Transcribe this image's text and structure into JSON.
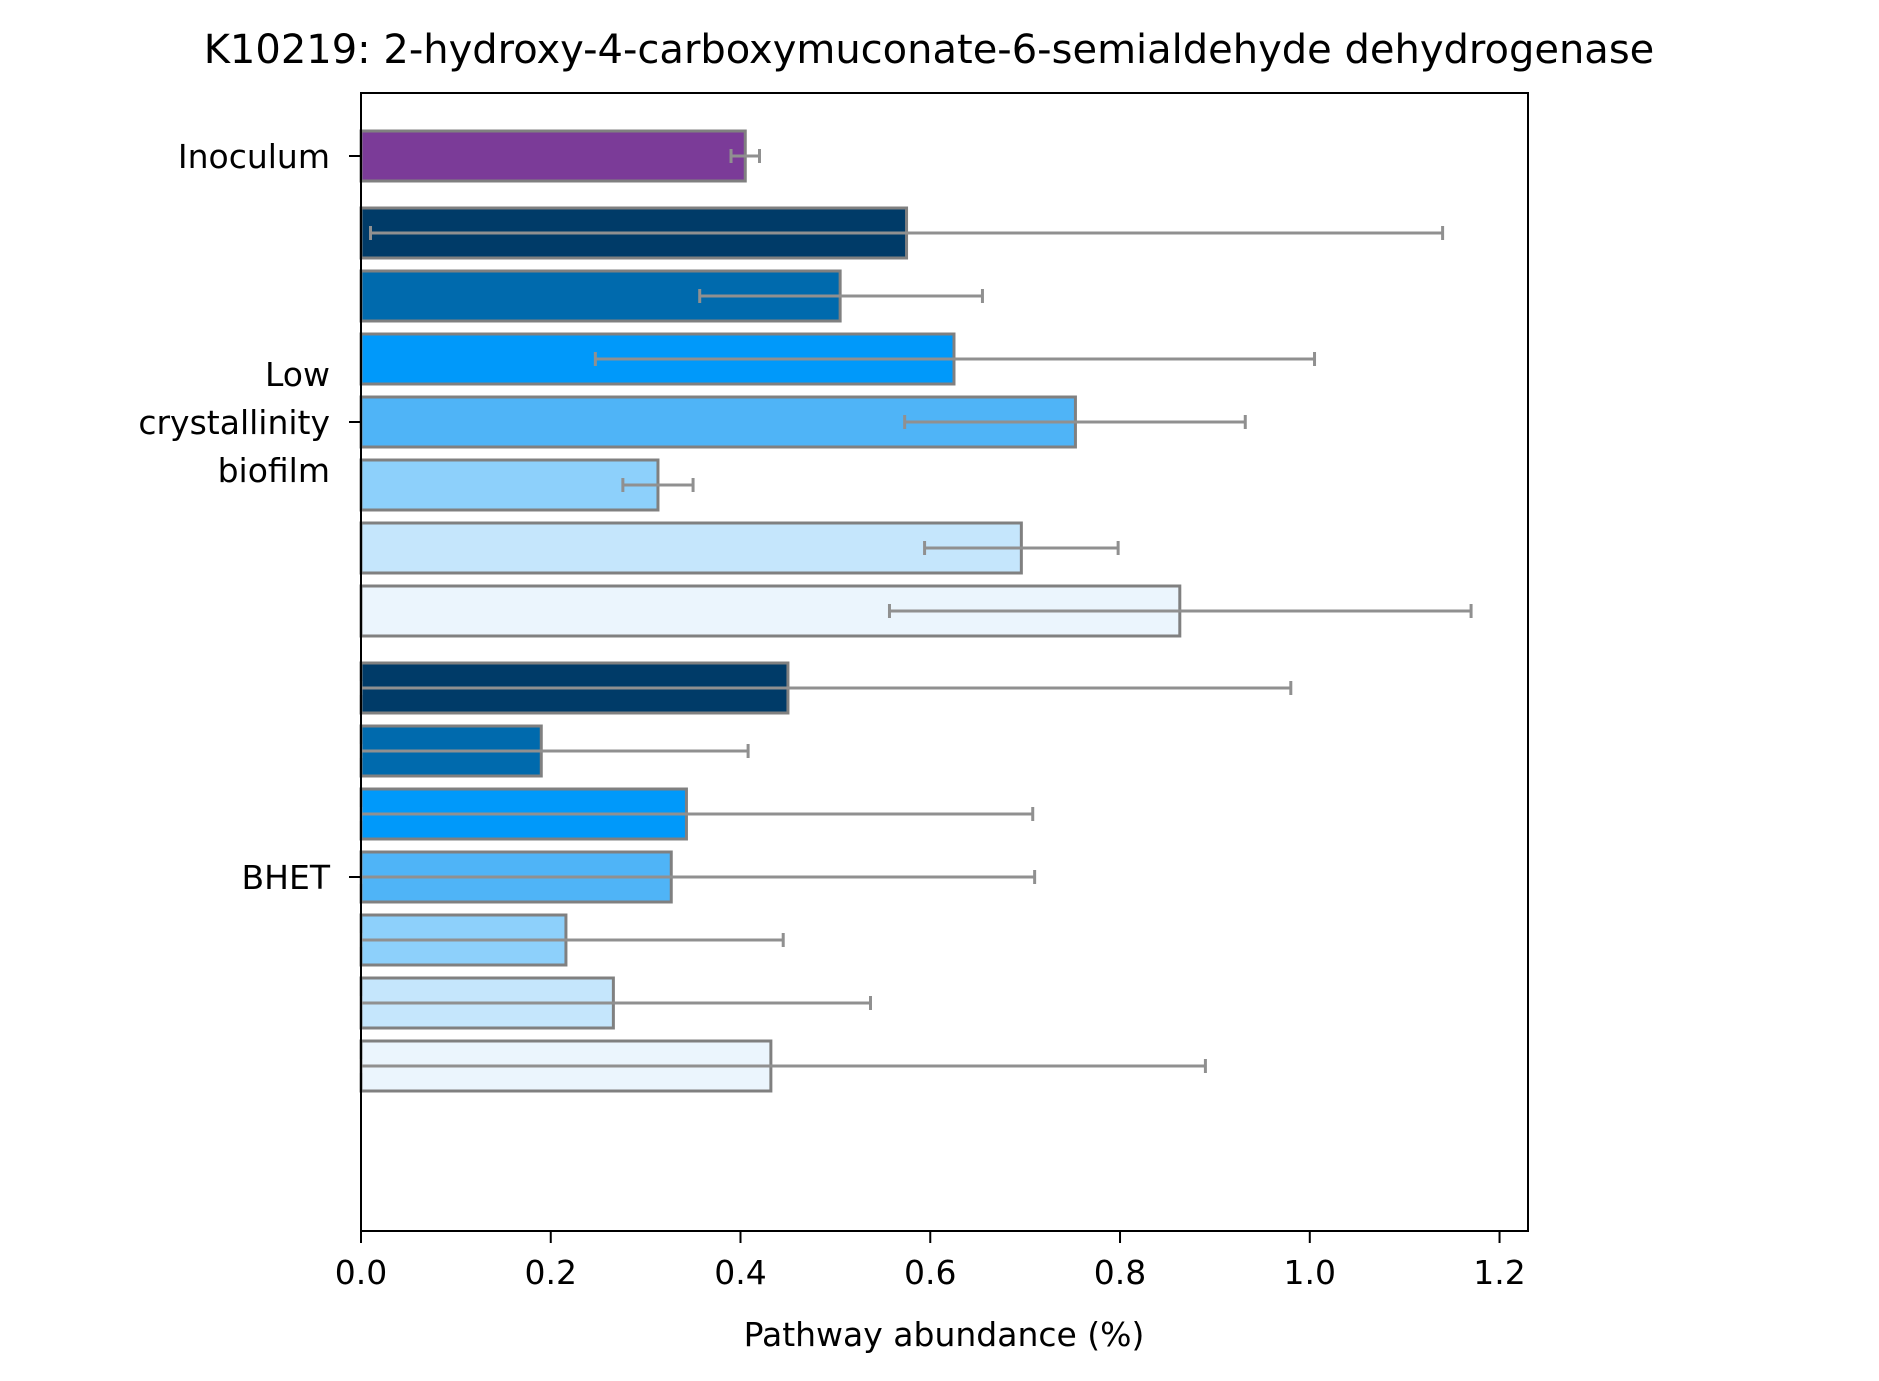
{
  "chart_data": {
    "type": "bar",
    "orientation": "horizontal",
    "title": "K10219: 2-hydroxy-4-carboxymuconate-6-semialdehyde dehydrogenase",
    "xlabel": "Pathway abundance (%)",
    "ylabel": "",
    "xlim": [
      0,
      1.23
    ],
    "xticks": [
      "0.0",
      "0.2",
      "0.4",
      "0.6",
      "0.8",
      "1.0",
      "1.2"
    ],
    "grid": false,
    "groups": [
      {
        "label_lines": [
          "Inoculum"
        ],
        "bars": [
          {
            "value": 0.405,
            "err_low": 0.39,
            "err_high": 0.42,
            "color": "#7b3b98"
          }
        ]
      },
      {
        "label_lines": [
          "Low",
          "crystallinity",
          "biofilm"
        ],
        "bars": [
          {
            "value": 0.575,
            "err_low": 0.01,
            "err_high": 1.14,
            "color": "#003b68"
          },
          {
            "value": 0.505,
            "err_low": 0.357,
            "err_high": 0.655,
            "color": "#006aad"
          },
          {
            "value": 0.625,
            "err_low": 0.247,
            "err_high": 1.005,
            "color": "#0099fa"
          },
          {
            "value": 0.753,
            "err_low": 0.573,
            "err_high": 0.932,
            "color": "#4fb4f7"
          },
          {
            "value": 0.313,
            "err_low": 0.276,
            "err_high": 0.35,
            "color": "#8dd0fb"
          },
          {
            "value": 0.696,
            "err_low": 0.594,
            "err_high": 0.798,
            "color": "#c5e6fc"
          },
          {
            "value": 0.863,
            "err_low": 0.557,
            "err_high": 1.17,
            "color": "#ebf5fd"
          }
        ]
      },
      {
        "label_lines": [
          "BHET"
        ],
        "bars": [
          {
            "value": 0.45,
            "err_low": 0.0,
            "err_high": 0.98,
            "color": "#003b68"
          },
          {
            "value": 0.19,
            "err_low": 0.0,
            "err_high": 0.408,
            "color": "#006aad"
          },
          {
            "value": 0.343,
            "err_low": 0.0,
            "err_high": 0.708,
            "color": "#0099fa"
          },
          {
            "value": 0.327,
            "err_low": 0.0,
            "err_high": 0.71,
            "color": "#4fb4f7"
          },
          {
            "value": 0.216,
            "err_low": 0.0,
            "err_high": 0.445,
            "color": "#8dd0fb"
          },
          {
            "value": 0.266,
            "err_low": 0.0,
            "err_high": 0.537,
            "color": "#c5e6fc"
          },
          {
            "value": 0.432,
            "err_low": 0.0,
            "err_high": 0.89,
            "color": "#ebf5fd"
          }
        ]
      }
    ],
    "bar_edge_color": "#808080",
    "errorbar_color": "#909090"
  }
}
